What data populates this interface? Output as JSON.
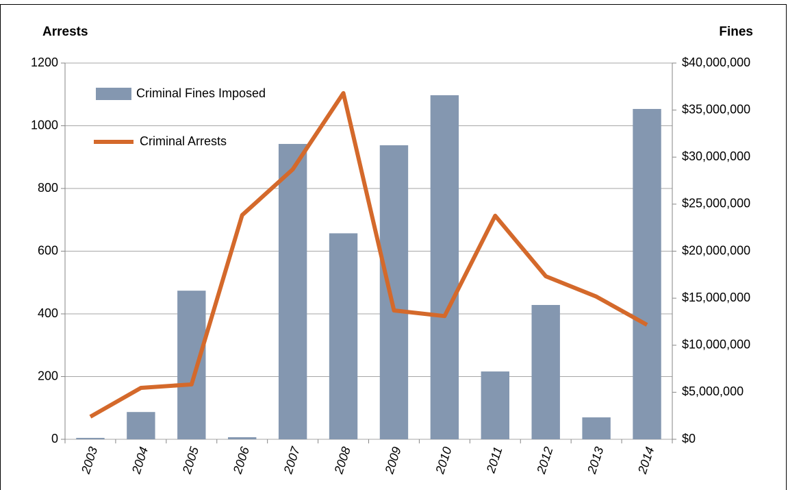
{
  "chart_data": {
    "type": "bar",
    "y_axis_title": "Arrests",
    "y2_axis_title": "Fines",
    "categories": [
      "2003",
      "2004",
      "2005",
      "2006",
      "2007",
      "2008",
      "2009",
      "2010",
      "2011",
      "2012",
      "2013",
      "2014"
    ],
    "series": [
      {
        "name": "Criminal Fines Imposed",
        "type": "bar",
        "axis": "y2",
        "color": "#8497b0",
        "values": [
          150000,
          2900000,
          15800000,
          220000,
          31400000,
          21900000,
          31260000,
          36580000,
          7210000,
          14280000,
          2330000,
          35120000
        ]
      },
      {
        "name": "Criminal Arrests",
        "type": "line",
        "axis": "y",
        "color": "#d4692b",
        "values": [
          72,
          164,
          175,
          715,
          861,
          1104,
          411,
          393,
          713,
          520,
          455,
          365
        ]
      }
    ],
    "ylim": [
      0,
      1200
    ],
    "yticks": [
      0,
      200,
      400,
      600,
      800,
      1000,
      1200
    ],
    "y2lim": [
      0,
      40000000
    ],
    "y2ticks": [
      {
        "value": 0,
        "label": "$0"
      },
      {
        "value": 5000000,
        "label": "$5,000,000"
      },
      {
        "value": 10000000,
        "label": "$10,000,000"
      },
      {
        "value": 15000000,
        "label": "$15,000,000"
      },
      {
        "value": 20000000,
        "label": "$20,000,000"
      },
      {
        "value": 25000000,
        "label": "$25,000,000"
      },
      {
        "value": 30000000,
        "label": "$30,000,000"
      },
      {
        "value": 35000000,
        "label": "$35,000,000"
      },
      {
        "value": 40000000,
        "label": "$40,000,000"
      }
    ],
    "grid": true,
    "legend": "top-left"
  }
}
